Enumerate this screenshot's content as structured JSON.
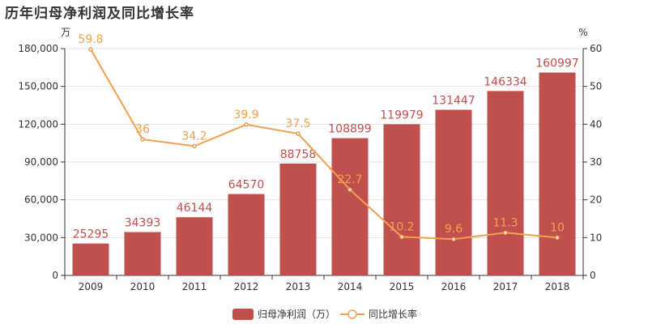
{
  "chart_data": {
    "type": "bar",
    "title": "历年归母净利润及同比增长率",
    "left_unit": "万",
    "right_unit": "%",
    "categories": [
      "2009",
      "2010",
      "2011",
      "2012",
      "2013",
      "2014",
      "2015",
      "2016",
      "2017",
      "2018"
    ],
    "series": [
      {
        "name": "归母净利润（万）",
        "type": "bar",
        "axis": "left",
        "color": "#c0504d",
        "values": [
          25295,
          34393,
          46144,
          64570,
          88758,
          108899,
          119979,
          131447,
          146334,
          160997
        ]
      },
      {
        "name": "同比增长率",
        "type": "line",
        "axis": "right",
        "color": "#f0a050",
        "values": [
          59.8,
          36,
          34.2,
          39.9,
          37.5,
          22.7,
          10.2,
          9.6,
          11.3,
          10
        ]
      }
    ],
    "y_left": {
      "min": 0,
      "max": 180000,
      "ticks": [
        "0",
        "30,000",
        "60,000",
        "90,000",
        "120,000",
        "150,000",
        "180,000"
      ]
    },
    "y_right": {
      "min": 0,
      "max": 60,
      "ticks": [
        "0",
        "10",
        "20",
        "30",
        "40",
        "50",
        "60"
      ]
    },
    "grid": true,
    "legend_position": "bottom-center"
  }
}
